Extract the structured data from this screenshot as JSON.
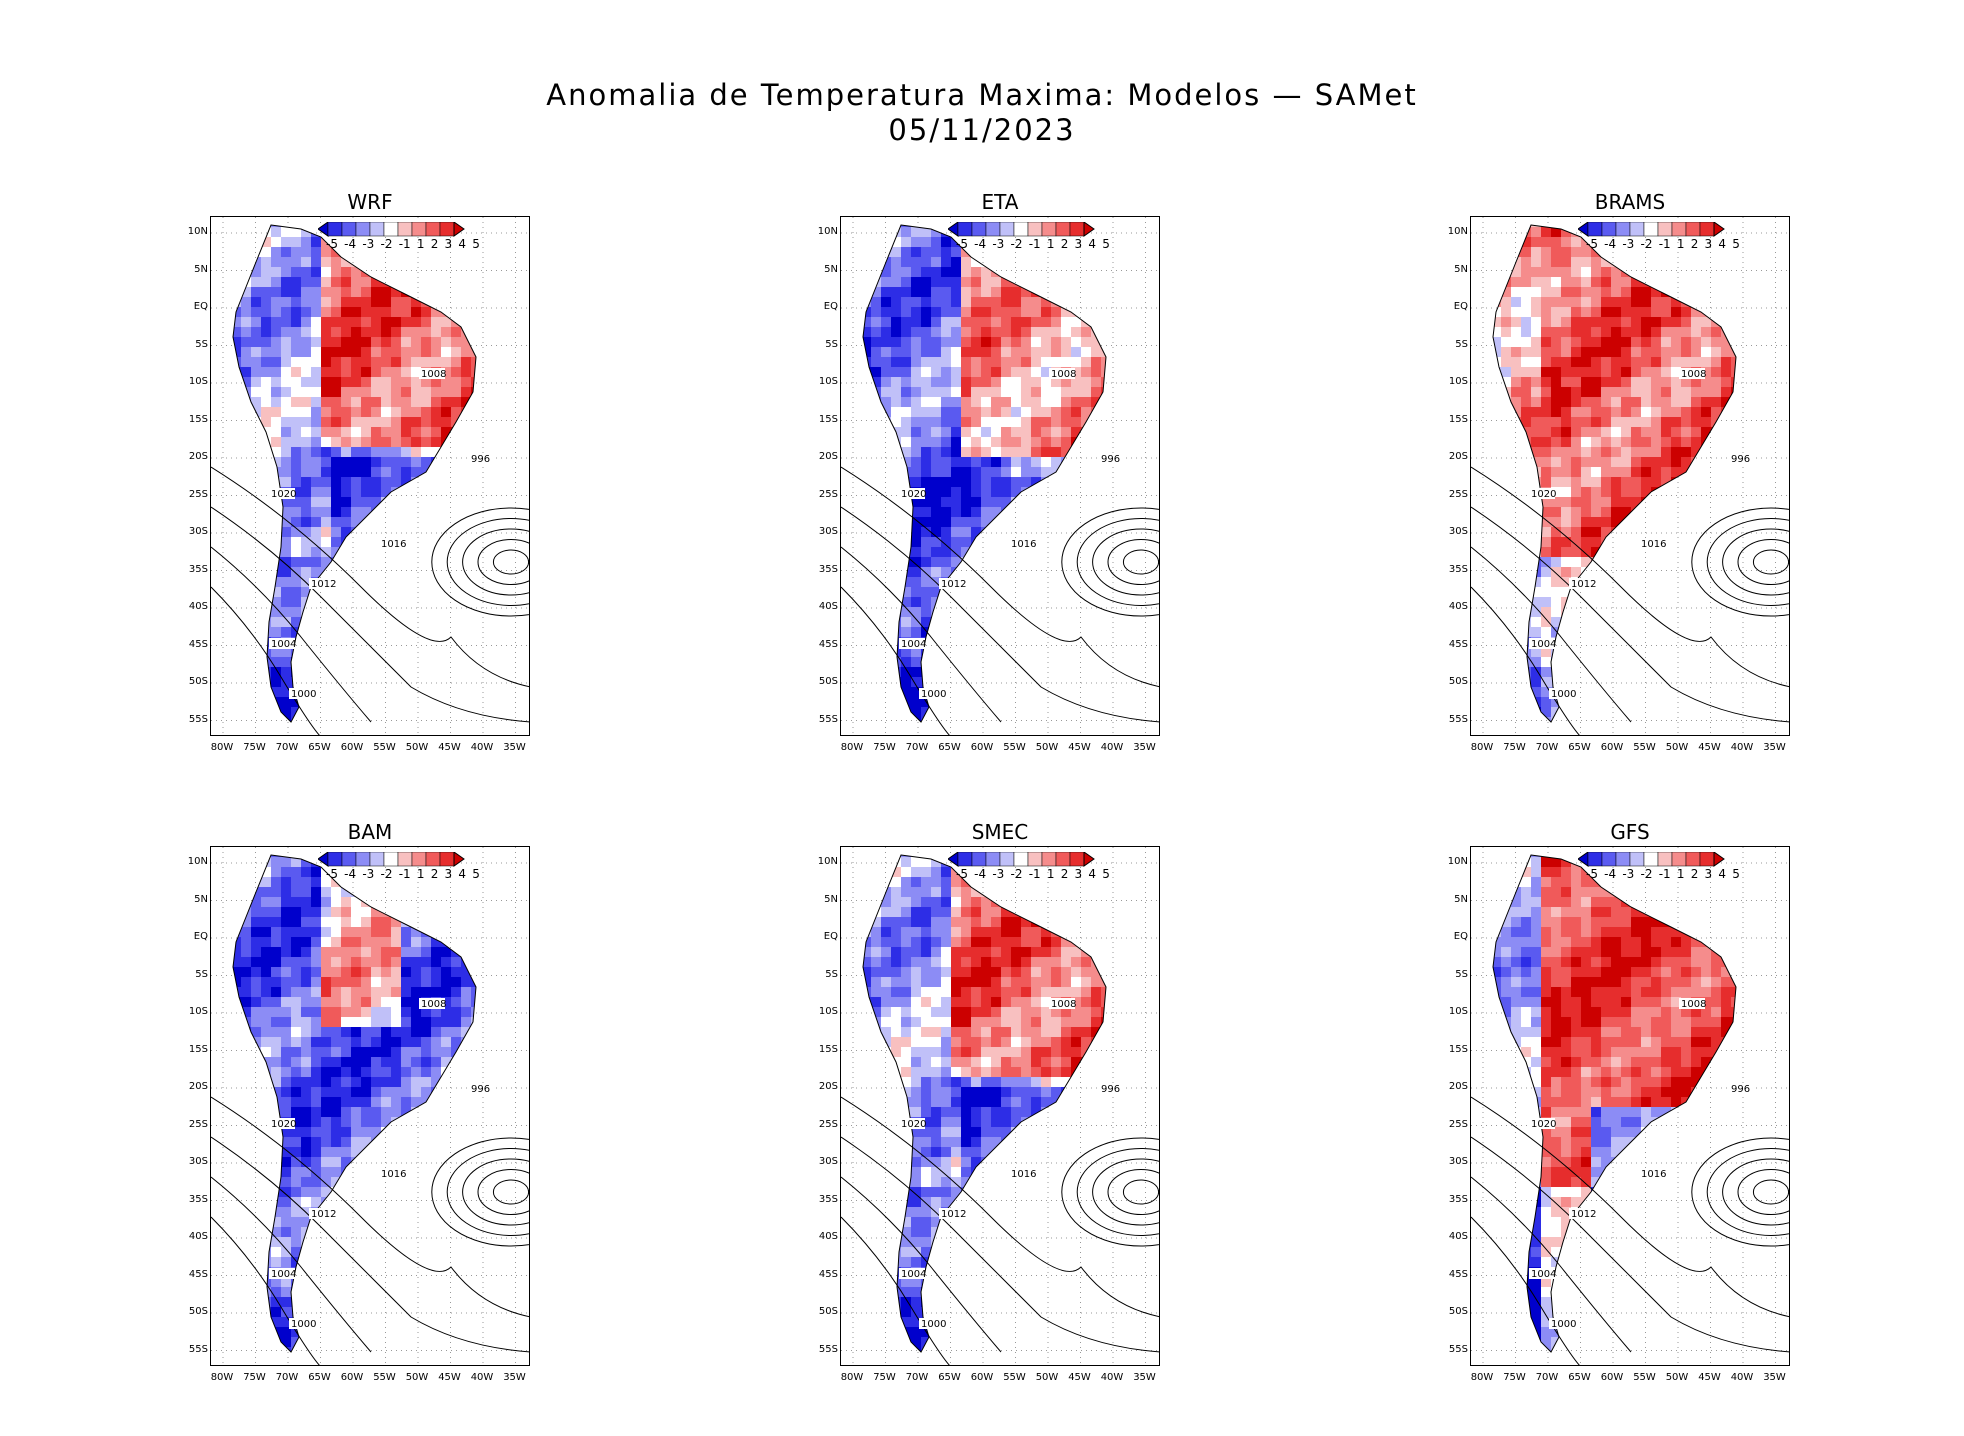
{
  "title": "Anomalia de Temperatura Maxima: Modelos — SAMet",
  "date": "05/11/2023",
  "lat_labels": [
    "10N",
    "5N",
    "EQ",
    "5S",
    "10S",
    "15S",
    "20S",
    "25S",
    "30S",
    "35S",
    "40S",
    "45S",
    "50S",
    "55S"
  ],
  "lon_labels": [
    "80W",
    "75W",
    "70W",
    "65W",
    "60W",
    "55W",
    "50W",
    "45W",
    "40W",
    "35W"
  ],
  "colorbar": {
    "labels": [
      "-5",
      "-4",
      "-3",
      "-2",
      "-1",
      "1",
      "2",
      "3",
      "4",
      "5"
    ],
    "colors": [
      "#0000cc",
      "#2d2de6",
      "#5a5af0",
      "#8c8cf5",
      "#c0c0f8",
      "#ffffff",
      "#f8c0c0",
      "#f58c8c",
      "#f05a5a",
      "#e62d2d",
      "#cc0000"
    ]
  },
  "panels": [
    {
      "name": "WRF",
      "tone": "mixed-warm"
    },
    {
      "name": "ETA",
      "tone": "mixed-cold"
    },
    {
      "name": "BRAMS",
      "tone": "warm"
    },
    {
      "name": "BAM",
      "tone": "cold"
    },
    {
      "name": "SMEC",
      "tone": "mixed-warm"
    },
    {
      "name": "GFS",
      "tone": "warm-strong"
    }
  ],
  "isobar_labels": [
    "1016",
    "1012",
    "1008",
    "1004",
    "1000",
    "996",
    "1020"
  ]
}
